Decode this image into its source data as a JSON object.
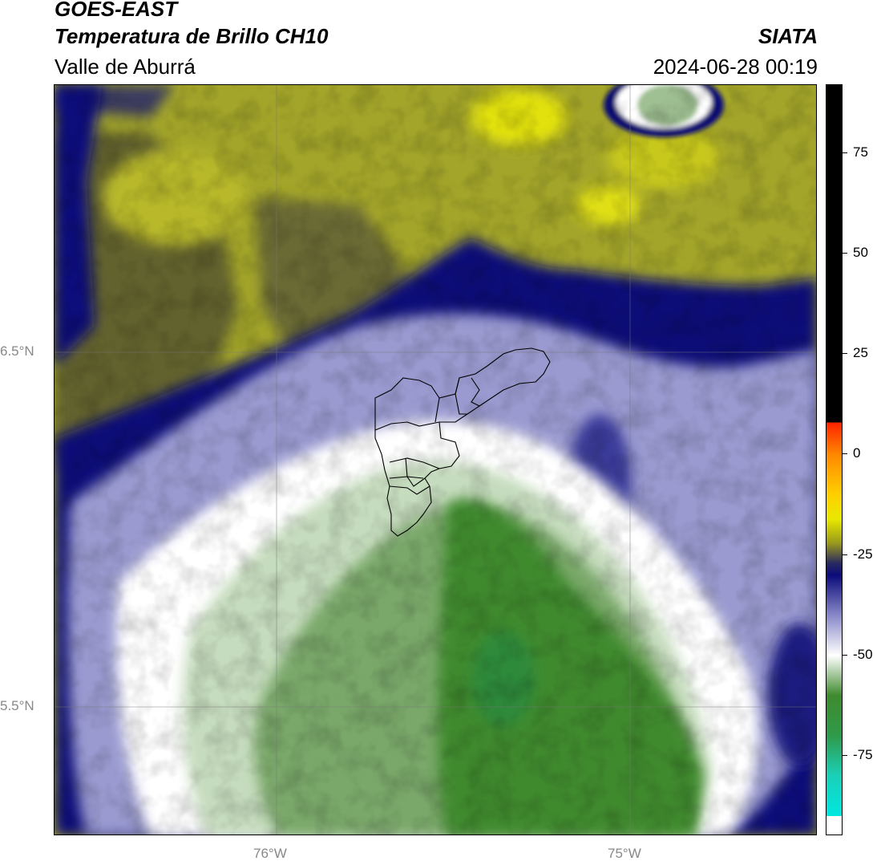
{
  "header": {
    "satellite": "GOES-EAST",
    "product": "Temperatura de Brillo CH10",
    "region": "Valle de Aburrá",
    "institution": "SIATA",
    "datetime": "2024-06-28 00:19"
  },
  "axes": {
    "lat_labels": [
      "6.5°N",
      "5.5°N"
    ],
    "lon_labels": [
      "76°W",
      "75°W"
    ]
  },
  "colorbar": {
    "tick_labels": [
      "75",
      "50",
      "25",
      "0",
      "-25",
      "-50",
      "-75"
    ],
    "stops": [
      {
        "value": 92,
        "color": "#000000"
      },
      {
        "value": 8,
        "color": "#000000"
      },
      {
        "value": 8,
        "color": "#ff2200"
      },
      {
        "value": 0,
        "color": "#ff8800"
      },
      {
        "value": -10,
        "color": "#ffd000"
      },
      {
        "value": -16,
        "color": "#e8e800"
      },
      {
        "value": -22,
        "color": "#9a9a1c"
      },
      {
        "value": -27,
        "color": "#2a2a60"
      },
      {
        "value": -30,
        "color": "#0b0b7a"
      },
      {
        "value": -40,
        "color": "#8888c8"
      },
      {
        "value": -50,
        "color": "#ffffff"
      },
      {
        "value": -60,
        "color": "#3f8a2e"
      },
      {
        "value": -70,
        "color": "#2f9a4a"
      },
      {
        "value": -80,
        "color": "#1ad0b8"
      },
      {
        "value": -90,
        "color": "#00e8e0"
      },
      {
        "value": -90,
        "color": "#ffffff"
      },
      {
        "value": -95,
        "color": "#ffffff"
      }
    ]
  },
  "colors": {
    "cloud_top_yellow": "#a3a52a",
    "bright_yellow": "#e2e10c",
    "dark_navy": "#0e0e78",
    "lavender": "#9a9ad0",
    "white": "#ffffff",
    "pale_green": "#c6dcbe",
    "mid_green": "#7aa86a",
    "dark_green": "#3f8a2e"
  }
}
